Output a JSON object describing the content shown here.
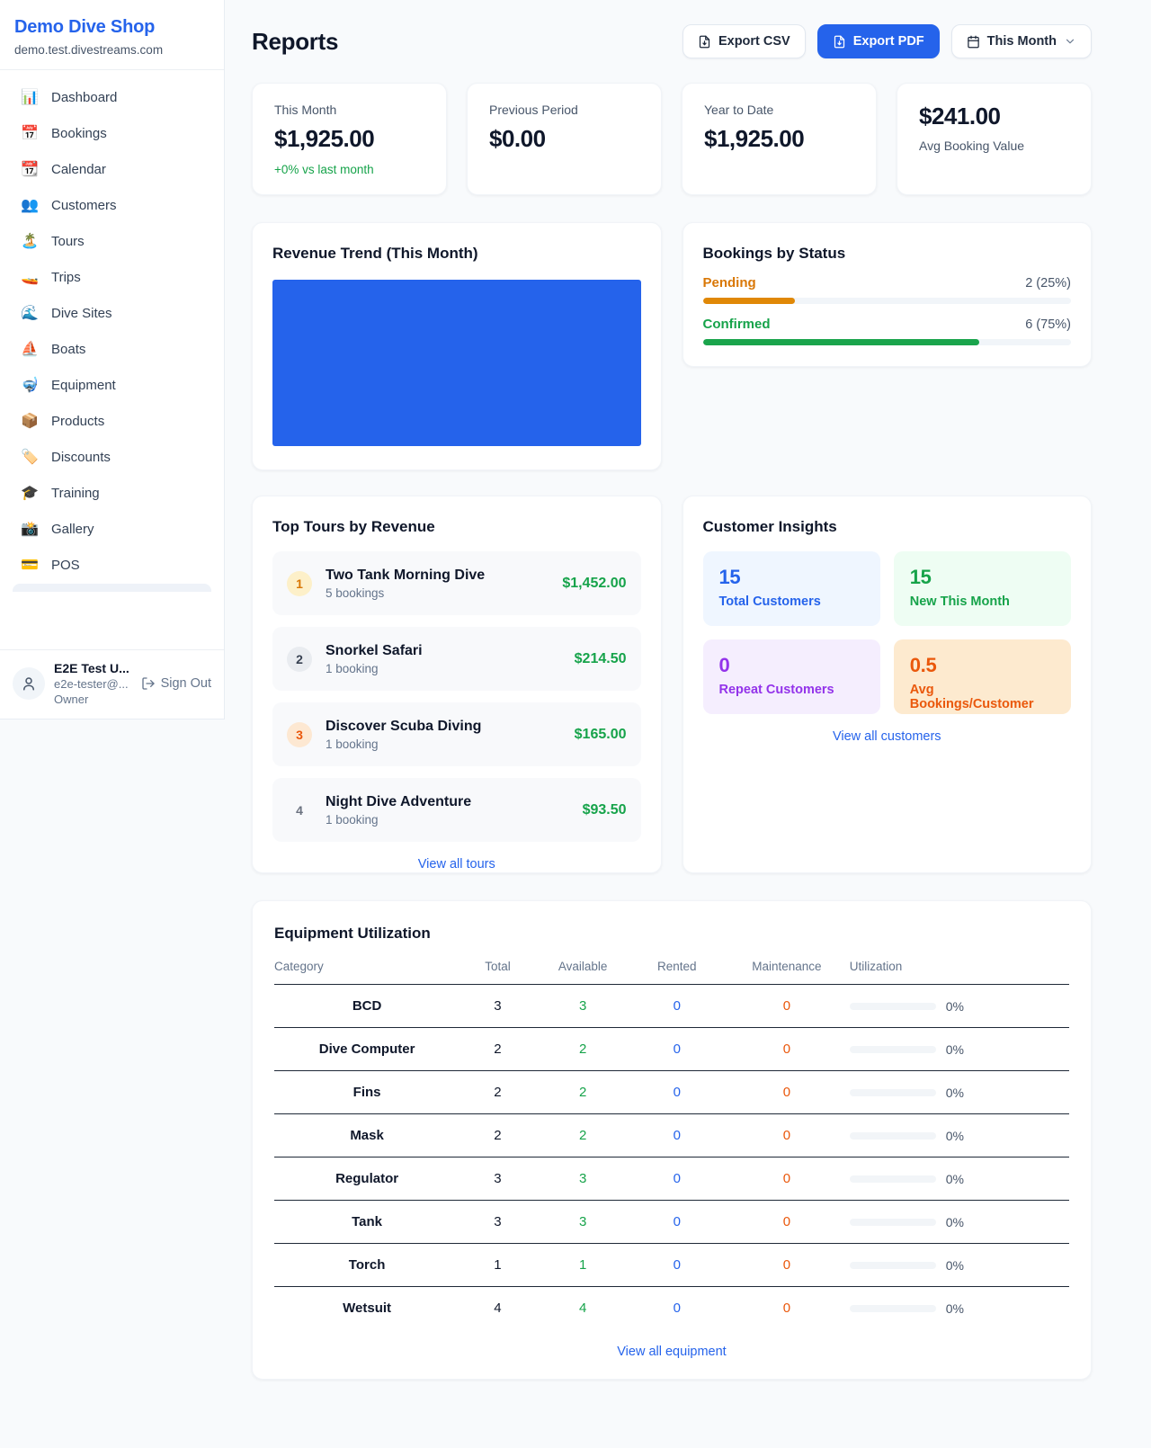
{
  "colors": {
    "accent_blue": "#2563eb",
    "green": "#16a34a",
    "pending_orange": "#d97706",
    "deep_orange": "#ea580c",
    "purple": "#9333ea",
    "page_background": "#f8fafc"
  },
  "sidebar": {
    "shop_name": "Demo Dive Shop",
    "shop_domain": "demo.test.divestreams.com",
    "items": [
      {
        "icon": "📊",
        "label": "Dashboard"
      },
      {
        "icon": "📅",
        "label": "Bookings"
      },
      {
        "icon": "📆",
        "label": "Calendar"
      },
      {
        "icon": "👥",
        "label": "Customers"
      },
      {
        "icon": "🏝️",
        "label": "Tours"
      },
      {
        "icon": "🚤",
        "label": "Trips"
      },
      {
        "icon": "🌊",
        "label": "Dive Sites"
      },
      {
        "icon": "⛵",
        "label": "Boats"
      },
      {
        "icon": "🤿",
        "label": "Equipment"
      },
      {
        "icon": "📦",
        "label": "Products"
      },
      {
        "icon": "🏷️",
        "label": "Discounts"
      },
      {
        "icon": "🎓",
        "label": "Training"
      },
      {
        "icon": "📸",
        "label": "Gallery"
      },
      {
        "icon": "💳",
        "label": "POS"
      }
    ],
    "user": {
      "name": "E2E Test U...",
      "email": "e2e-tester@...",
      "role": "Owner",
      "sign_out_label": "Sign Out"
    }
  },
  "header": {
    "title": "Reports",
    "export_csv_label": "Export CSV",
    "export_pdf_label": "Export PDF",
    "period_selected": "This Month"
  },
  "stats": [
    {
      "label": "This Month",
      "value": "$1,925.00",
      "delta": "+0% vs last month"
    },
    {
      "label": "Previous Period",
      "value": "$0.00"
    },
    {
      "label": "Year to Date",
      "value": "$1,925.00"
    },
    {
      "label": "Avg Booking Value",
      "value": "$241.00"
    }
  ],
  "revenue_trend": {
    "title": "Revenue Trend (This Month)",
    "bar_color": "#2563eb"
  },
  "bookings_by_status": {
    "title": "Bookings by Status",
    "rows": [
      {
        "label": "Pending",
        "count": "2 (25%)",
        "percent": 25
      },
      {
        "label": "Confirmed",
        "count": "6 (75%)",
        "percent": 75
      }
    ]
  },
  "top_tours": {
    "title": "Top Tours by Revenue",
    "rows": [
      {
        "rank": "1",
        "name": "Two Tank Morning Dive",
        "bookings": "5 bookings",
        "revenue": "$1,452.00"
      },
      {
        "rank": "2",
        "name": "Snorkel Safari",
        "bookings": "1 booking",
        "revenue": "$214.50"
      },
      {
        "rank": "3",
        "name": "Discover Scuba Diving",
        "bookings": "1 booking",
        "revenue": "$165.00"
      },
      {
        "rank": "4",
        "name": "Night Dive Adventure",
        "bookings": "1 booking",
        "revenue": "$93.50"
      }
    ],
    "view_all": "View all tours"
  },
  "customer_insights": {
    "title": "Customer Insights",
    "tiles": [
      {
        "value": "15",
        "label": "Total Customers"
      },
      {
        "value": "15",
        "label": "New This Month"
      },
      {
        "value": "0",
        "label": "Repeat Customers"
      },
      {
        "value": "0.5",
        "label": "Avg Bookings/Customer"
      }
    ],
    "view_all": "View all customers"
  },
  "equipment": {
    "title": "Equipment Utilization",
    "columns": [
      "Category",
      "Total",
      "Available",
      "Rented",
      "Maintenance",
      "Utilization"
    ],
    "rows": [
      {
        "category": "BCD",
        "total": "3",
        "available": "3",
        "rented": "0",
        "maintenance": "0",
        "utilization": "0%"
      },
      {
        "category": "Dive Computer",
        "total": "2",
        "available": "2",
        "rented": "0",
        "maintenance": "0",
        "utilization": "0%"
      },
      {
        "category": "Fins",
        "total": "2",
        "available": "2",
        "rented": "0",
        "maintenance": "0",
        "utilization": "0%"
      },
      {
        "category": "Mask",
        "total": "2",
        "available": "2",
        "rented": "0",
        "maintenance": "0",
        "utilization": "0%"
      },
      {
        "category": "Regulator",
        "total": "3",
        "available": "3",
        "rented": "0",
        "maintenance": "0",
        "utilization": "0%"
      },
      {
        "category": "Tank",
        "total": "3",
        "available": "3",
        "rented": "0",
        "maintenance": "0",
        "utilization": "0%"
      },
      {
        "category": "Torch",
        "total": "1",
        "available": "1",
        "rented": "0",
        "maintenance": "0",
        "utilization": "0%"
      },
      {
        "category": "Wetsuit",
        "total": "4",
        "available": "4",
        "rented": "0",
        "maintenance": "0",
        "utilization": "0%"
      }
    ],
    "view_all": "View all equipment"
  }
}
